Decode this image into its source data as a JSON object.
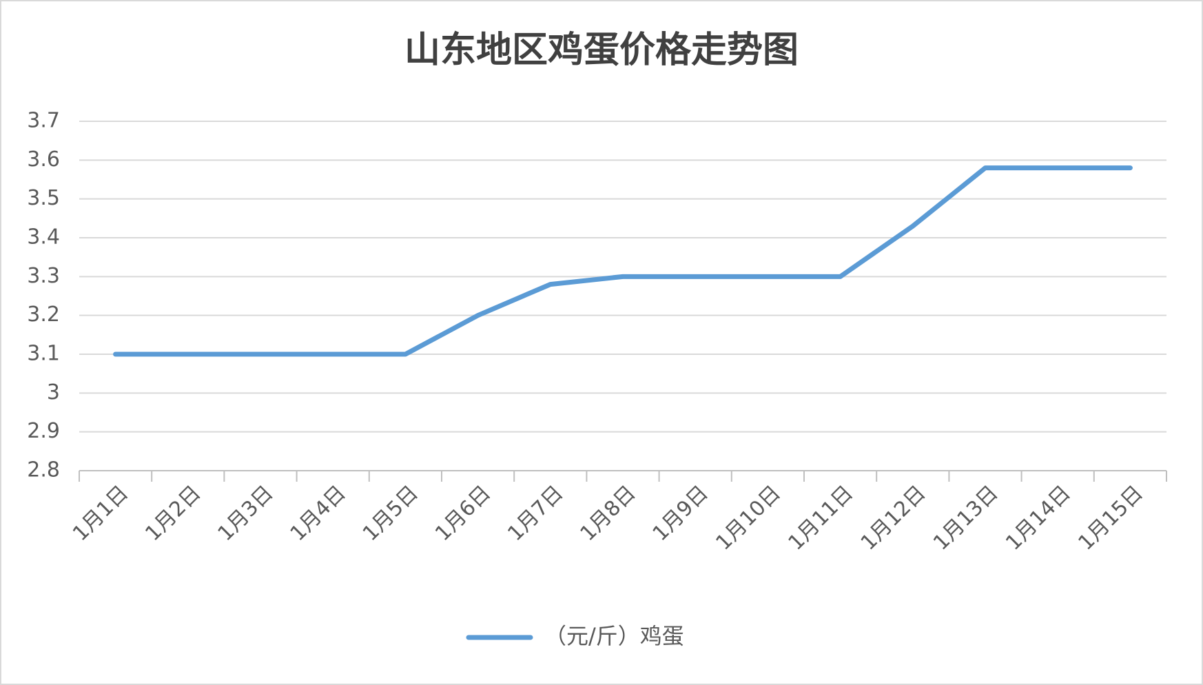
{
  "chart_data": {
    "type": "line",
    "title": "山东地区鸡蛋价格走势图",
    "categories": [
      "1月1日",
      "1月2日",
      "1月3日",
      "1月4日",
      "1月5日",
      "1月6日",
      "1月7日",
      "1月8日",
      "1月9日",
      "1月10日",
      "1月11日",
      "1月12日",
      "1月13日",
      "1月14日",
      "1月15日"
    ],
    "series": [
      {
        "name": "（元/斤）鸡蛋",
        "color": "#5b9bd5",
        "values": [
          3.1,
          3.1,
          3.1,
          3.1,
          3.1,
          3.2,
          3.28,
          3.3,
          3.3,
          3.3,
          3.3,
          3.43,
          3.58,
          3.58,
          3.58
        ]
      }
    ],
    "ylim": [
      2.8,
      3.7
    ],
    "yticks": [
      2.8,
      2.9,
      3,
      3.1,
      3.2,
      3.3,
      3.4,
      3.5,
      3.6,
      3.7
    ],
    "grid": true,
    "legend": "bottom"
  }
}
